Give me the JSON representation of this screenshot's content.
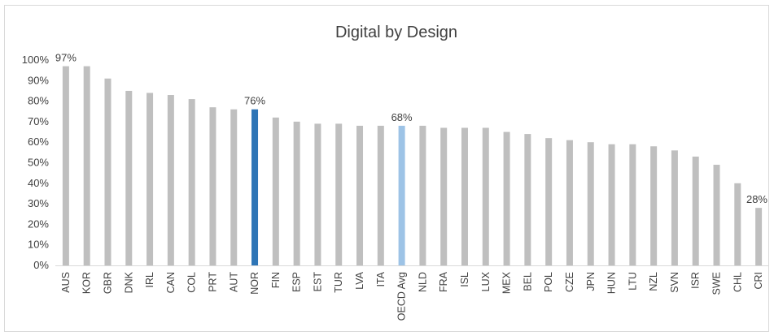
{
  "chart_data": {
    "type": "bar",
    "title": "Digital by Design",
    "xlabel": "",
    "ylabel": "",
    "ylim": [
      0,
      100
    ],
    "y_ticks": [
      "0%",
      "10%",
      "20%",
      "30%",
      "40%",
      "50%",
      "60%",
      "70%",
      "80%",
      "90%",
      "100%"
    ],
    "grid": false,
    "legend": "none",
    "categories": [
      "AUS",
      "KOR",
      "GBR",
      "DNK",
      "IRL",
      "CAN",
      "COL",
      "PRT",
      "AUT",
      "NOR",
      "FIN",
      "ESP",
      "EST",
      "TUR",
      "LVA",
      "ITA",
      "OECD Avg",
      "NLD",
      "FRA",
      "ISL",
      "LUX",
      "MEX",
      "BEL",
      "POL",
      "CZE",
      "JPN",
      "HUN",
      "LTU",
      "NZL",
      "SVN",
      "ISR",
      "SWE",
      "CHL",
      "CRI"
    ],
    "values": [
      97,
      97,
      91,
      85,
      84,
      83,
      81,
      77,
      76,
      76,
      72,
      70,
      69,
      69,
      68,
      68,
      68,
      68,
      67,
      67,
      67,
      65,
      64,
      62,
      61,
      60,
      59,
      59,
      58,
      56,
      53,
      49,
      40,
      28
    ],
    "data_labels": [
      {
        "category": "AUS",
        "text": "97%"
      },
      {
        "category": "NOR",
        "text": "76%"
      },
      {
        "category": "OECD Avg",
        "text": "68%"
      },
      {
        "category": "CRI",
        "text": "28%"
      }
    ],
    "colors": {
      "default": "#bfbfbf",
      "NOR": "#2e75b6",
      "OECD Avg": "#9dc3e6",
      "axis": "#d9d9d9",
      "text": "#404040"
    }
  }
}
